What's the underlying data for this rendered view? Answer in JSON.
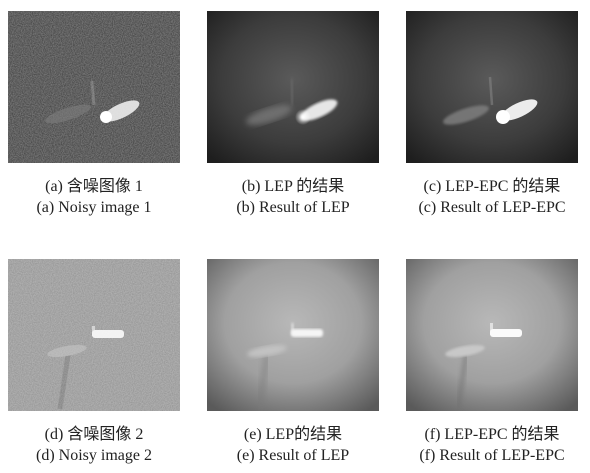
{
  "panels": [
    {
      "id": "a",
      "caption_zh": "(a) 含噪图像 1",
      "caption_en": "(a) Noisy image 1"
    },
    {
      "id": "b",
      "caption_zh": "(b) LEP 的结果",
      "caption_en": "(b) Result of LEP"
    },
    {
      "id": "c",
      "caption_zh": "(c) LEP-EPC 的结果",
      "caption_en": "(c) Result of LEP-EPC"
    },
    {
      "id": "d",
      "caption_zh": "(d) 含噪图像 2",
      "caption_en": "(d) Noisy image 2"
    },
    {
      "id": "e",
      "caption_zh": "(e) LEP的结果",
      "caption_en": "(e) Result of LEP"
    },
    {
      "id": "f",
      "caption_zh": "(f) LEP-EPC 的结果",
      "caption_en": "(f) Result of LEP-EPC"
    }
  ]
}
